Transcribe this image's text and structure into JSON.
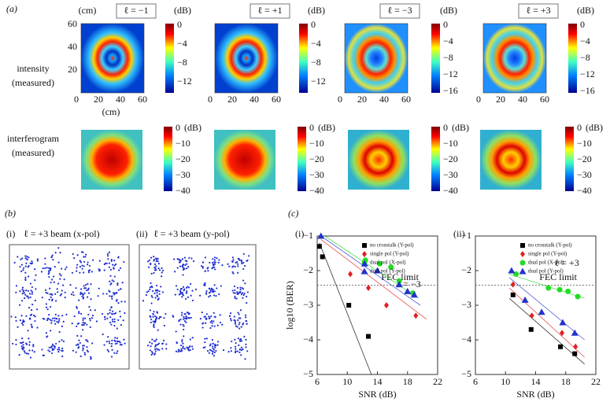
{
  "panel_a": {
    "label": "(a)",
    "intensity_label": [
      "intensity",
      "(measured)"
    ],
    "interferogram_label": [
      "interferogram",
      "(measured)"
    ],
    "axis_unit": "(cm)",
    "cbar_unit": "(dB)",
    "map_yticks": [
      "60",
      "40",
      "20"
    ],
    "map_xticks": [
      "0",
      "20",
      "40",
      "60"
    ],
    "intensity": [
      {
        "title": "ℓ = −1",
        "cbar_ticks": [
          "0",
          "−4",
          "−8",
          "−12"
        ]
      },
      {
        "title": "ℓ = +1",
        "cbar_ticks": [
          "0",
          "−4",
          "−8",
          "−12"
        ]
      },
      {
        "title": "ℓ = −3",
        "cbar_ticks": [
          "0",
          "−4",
          "−8",
          "−12",
          "−16"
        ]
      },
      {
        "title": "ℓ = +3",
        "cbar_ticks": [
          "0",
          "−4",
          "−8",
          "−12",
          "−16"
        ]
      }
    ],
    "interferogram_cbar_ticks": [
      "0",
      "−10",
      "−20",
      "−30",
      "−40"
    ]
  },
  "panel_b": {
    "label": "(b)",
    "plots": [
      {
        "index": "(i)",
        "title": "ℓ = +3 beam (x-pol)"
      },
      {
        "index": "(ii)",
        "title": "ℓ = +3 beam (y-pol)"
      }
    ]
  },
  "panel_c_label": "(c)",
  "chart_data": [
    {
      "type": "scatter",
      "panel": "(i)",
      "annotation": "ℓ = −3",
      "fec_label": "FEC limit",
      "fec_value": -2.42,
      "xlabel": "SNR (dB)",
      "ylabel": "log10 (BER)",
      "xlim": [
        6,
        22
      ],
      "xticks": [
        6,
        10,
        14,
        18,
        22
      ],
      "ylim": [
        -5,
        -1
      ],
      "yticks": [
        {
          "value": -1,
          "label": "−1"
        },
        {
          "value": -2,
          "label": "−2"
        },
        {
          "value": -3,
          "label": "−3"
        },
        {
          "value": -4,
          "label": "−4"
        },
        {
          "value": -5,
          "label": "−5"
        }
      ],
      "series": [
        {
          "name": "no crosstalk (Y-pol)",
          "color": "#000000",
          "marker": "square",
          "x": [
            6.3,
            6.7,
            10.2,
            12.8
          ],
          "values": [
            -1.3,
            -1.6,
            -3.0,
            -3.9
          ],
          "fit_x": [
            6.3,
            13.2
          ],
          "fit_y": [
            -1.2,
            -5
          ]
        },
        {
          "name": "single pol (Y-pol)",
          "color": "#e02020",
          "marker": "diamond",
          "x": [
            10.4,
            12.8,
            15.2,
            19.1
          ],
          "values": [
            -2.1,
            -2.5,
            -3.0,
            -3.3
          ],
          "fit_x": [
            6.5,
            20.5
          ],
          "fit_y": [
            -1.1,
            -3.4
          ]
        },
        {
          "name": "dual pol (X-pol)",
          "color": "#22dd22",
          "marker": "circle",
          "x": [
            12.4,
            14.3,
            15.8,
            16.9,
            18.7
          ],
          "values": [
            -1.7,
            -1.8,
            -1.9,
            -2.3,
            -2.65
          ],
          "fit_x": [
            7,
            19.5
          ],
          "fit_y": [
            -1.0,
            -2.8
          ]
        },
        {
          "name": "dual pol (Y-pol)",
          "color": "#2233cc",
          "marker": "triangle",
          "x": [
            6.5,
            12.3,
            14.0,
            16.9,
            18.0,
            18.9
          ],
          "values": [
            -1.0,
            -1.8,
            -2.0,
            -2.4,
            -2.6,
            -2.7
          ],
          "fit_x": [
            6.5,
            19.7
          ],
          "fit_y": [
            -1.0,
            -3.0
          ]
        }
      ]
    },
    {
      "type": "scatter",
      "panel": "(ii)",
      "annotation": "ℓ = +3",
      "fec_label": "FEC limit",
      "fec_value": -2.42,
      "xlabel": "SNR (dB)",
      "xlim": [
        6,
        22
      ],
      "xticks": [
        6,
        10,
        14,
        18,
        22
      ],
      "ylim": [
        -5,
        -1
      ],
      "yticks": [
        {
          "value": -1,
          "label": "−1"
        },
        {
          "value": -2,
          "label": "−2"
        },
        {
          "value": -3,
          "label": "−3"
        },
        {
          "value": -4,
          "label": "−4"
        },
        {
          "value": -5,
          "label": "−5"
        }
      ],
      "series": [
        {
          "name": "no crosstalk (Y-pol)",
          "color": "#000000",
          "marker": "square",
          "x": [
            11,
            13.4,
            17.3,
            19.2
          ],
          "values": [
            -2.7,
            -3.7,
            -4.2,
            -4.4
          ],
          "fit_x": [
            10.5,
            20.5
          ],
          "fit_y": [
            -2.8,
            -4.7
          ]
        },
        {
          "name": "single pol (Y-pol)",
          "color": "#e02020",
          "marker": "diamond",
          "x": [
            11,
            13.5,
            17.5,
            19.3
          ],
          "values": [
            -2.4,
            -3.3,
            -3.8,
            -4.2
          ],
          "fit_x": [
            10.5,
            20.5
          ],
          "fit_y": [
            -2.5,
            -4.5
          ]
        },
        {
          "name": "dual pol (X-pol)",
          "color": "#22dd22",
          "marker": "circle",
          "x": [
            11.4,
            15.7,
            17.2,
            18.3,
            19.6
          ],
          "values": [
            -2.1,
            -2.5,
            -2.55,
            -2.6,
            -2.75
          ],
          "fit_x": [
            10.5,
            20.5
          ],
          "fit_y": [
            -2.1,
            -2.8
          ]
        },
        {
          "name": "dual pol (Y-pol)",
          "color": "#2233cc",
          "marker": "triangle",
          "x": [
            10.8,
            12.6,
            14.8,
            17.6,
            19.2
          ],
          "values": [
            -2.0,
            -2.85,
            -3.2,
            -3.5,
            -3.8
          ],
          "fit_x": [
            10.5,
            20.5
          ],
          "fit_y": [
            -2.2,
            -4.0
          ]
        }
      ]
    }
  ]
}
